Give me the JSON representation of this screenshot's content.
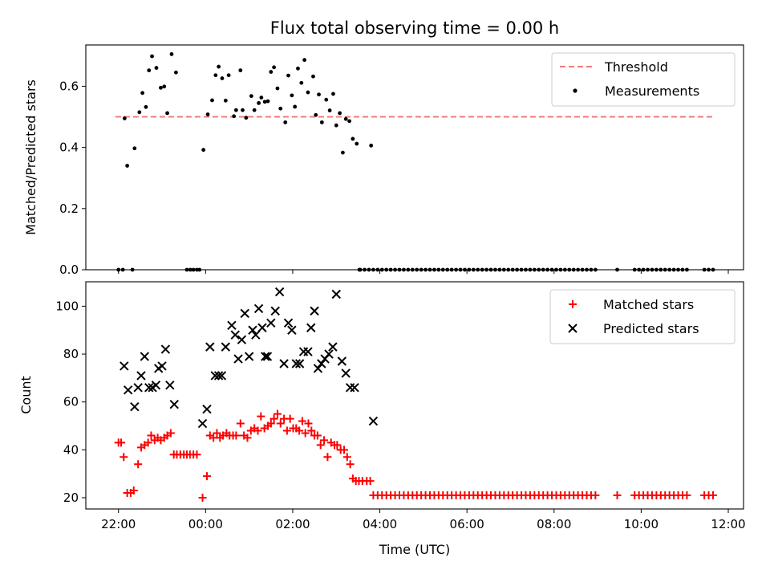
{
  "colors": {
    "threshold": "#f27a7a",
    "measurement": "#000000",
    "matched": "#ff0000",
    "predicted": "#000000"
  },
  "chart_data": [
    {
      "type": "scatter",
      "title": "Flux total observing time = 0.00 h",
      "xlabel": "",
      "ylabel": "Matched/Predicted stars",
      "xlim": [
        21.25,
        36.35
      ],
      "ylim": [
        0.0,
        0.735
      ],
      "yticks": [
        {
          "v": 0.0,
          "label": "0.0"
        },
        {
          "v": 0.2,
          "label": "0.2"
        },
        {
          "v": 0.4,
          "label": "0.4"
        },
        {
          "v": 0.6,
          "label": "0.6"
        }
      ],
      "legend": {
        "placement": "top-right",
        "items": [
          "Threshold",
          "Measurements"
        ]
      },
      "threshold": {
        "name": "Threshold",
        "y": 0.5,
        "x": [
          21.93,
          35.68
        ],
        "style": "dashed"
      },
      "series": [
        {
          "name": "Measurements",
          "marker": "dot",
          "points": [
            [
              22.0,
              0.0
            ],
            [
              22.1,
              0.0
            ],
            [
              22.14,
              0.495
            ],
            [
              22.2,
              0.34
            ],
            [
              22.32,
              0.0
            ],
            [
              22.37,
              0.397
            ],
            [
              22.48,
              0.515
            ],
            [
              22.55,
              0.578
            ],
            [
              22.63,
              0.532
            ],
            [
              22.7,
              0.652
            ],
            [
              22.77,
              0.698
            ],
            [
              22.87,
              0.66
            ],
            [
              22.97,
              0.595
            ],
            [
              23.05,
              0.599
            ],
            [
              23.12,
              0.512
            ],
            [
              23.22,
              0.705
            ],
            [
              23.32,
              0.645
            ],
            [
              23.57,
              0.0
            ],
            [
              23.65,
              0.0
            ],
            [
              23.72,
              0.0
            ],
            [
              23.8,
              0.0
            ],
            [
              23.86,
              0.0
            ],
            [
              23.95,
              0.392
            ],
            [
              24.05,
              0.508
            ],
            [
              24.15,
              0.554
            ],
            [
              24.23,
              0.636
            ],
            [
              24.3,
              0.664
            ],
            [
              24.38,
              0.626
            ],
            [
              24.46,
              0.553
            ],
            [
              24.53,
              0.636
            ],
            [
              24.65,
              0.502
            ],
            [
              24.7,
              0.522
            ],
            [
              24.8,
              0.652
            ],
            [
              24.85,
              0.522
            ],
            [
              24.93,
              0.497
            ],
            [
              25.05,
              0.568
            ],
            [
              25.12,
              0.522
            ],
            [
              25.22,
              0.545
            ],
            [
              25.28,
              0.563
            ],
            [
              25.36,
              0.549
            ],
            [
              25.43,
              0.551
            ],
            [
              25.5,
              0.647
            ],
            [
              25.57,
              0.662
            ],
            [
              25.65,
              0.593
            ],
            [
              25.72,
              0.527
            ],
            [
              25.83,
              0.482
            ],
            [
              25.9,
              0.635
            ],
            [
              25.98,
              0.57
            ],
            [
              26.05,
              0.533
            ],
            [
              26.12,
              0.658
            ],
            [
              26.2,
              0.611
            ],
            [
              26.27,
              0.686
            ],
            [
              26.35,
              0.58
            ],
            [
              26.47,
              0.632
            ],
            [
              26.53,
              0.506
            ],
            [
              26.6,
              0.573
            ],
            [
              26.67,
              0.482
            ],
            [
              26.77,
              0.556
            ],
            [
              26.85,
              0.521
            ],
            [
              26.93,
              0.575
            ],
            [
              27.0,
              0.472
            ],
            [
              27.08,
              0.512
            ],
            [
              27.15,
              0.383
            ],
            [
              27.22,
              0.493
            ],
            [
              27.3,
              0.486
            ],
            [
              27.38,
              0.428
            ],
            [
              27.47,
              0.412
            ],
            [
              27.53,
              0.0
            ],
            [
              27.8,
              0.406
            ]
          ],
          "zero_fill": {
            "from": 27.55,
            "to": 35.7,
            "step": 0.1,
            "y": 0.0,
            "gaps": [
              [
                33.0,
                33.4
              ],
              [
                33.55,
                33.85
              ],
              [
                35.15,
                35.45
              ]
            ]
          }
        }
      ]
    },
    {
      "type": "scatter",
      "title": "",
      "xlabel": "Time (UTC)",
      "ylabel": "Count",
      "xlim": [
        21.25,
        36.35
      ],
      "ylim": [
        15.3,
        110.2
      ],
      "yticks": [
        {
          "v": 20,
          "label": "20"
        },
        {
          "v": 40,
          "label": "40"
        },
        {
          "v": 60,
          "label": "60"
        },
        {
          "v": 80,
          "label": "80"
        },
        {
          "v": 100,
          "label": "100"
        }
      ],
      "xticks": [
        {
          "v": 22,
          "label": "22:00"
        },
        {
          "v": 24,
          "label": "00:00"
        },
        {
          "v": 26,
          "label": "02:00"
        },
        {
          "v": 28,
          "label": "04:00"
        },
        {
          "v": 30,
          "label": "06:00"
        },
        {
          "v": 32,
          "label": "08:00"
        },
        {
          "v": 34,
          "label": "10:00"
        },
        {
          "v": 36,
          "label": "12:00"
        }
      ],
      "legend": {
        "placement": "top-right",
        "items": [
          "Matched stars",
          "Predicted stars"
        ]
      },
      "series": [
        {
          "name": "Matched stars",
          "marker": "plus",
          "points": [
            [
              22.0,
              43
            ],
            [
              22.06,
              43
            ],
            [
              22.12,
              37
            ],
            [
              22.2,
              22
            ],
            [
              22.28,
              22
            ],
            [
              22.35,
              23
            ],
            [
              22.45,
              34
            ],
            [
              22.52,
              41
            ],
            [
              22.6,
              42
            ],
            [
              22.68,
              43
            ],
            [
              22.75,
              46
            ],
            [
              22.83,
              44
            ],
            [
              22.9,
              45
            ],
            [
              22.97,
              44
            ],
            [
              23.05,
              45
            ],
            [
              23.12,
              46
            ],
            [
              23.2,
              47
            ],
            [
              23.27,
              38
            ],
            [
              23.34,
              38
            ],
            [
              23.42,
              38
            ],
            [
              23.5,
              38
            ],
            [
              23.57,
              38
            ],
            [
              23.64,
              38
            ],
            [
              23.72,
              38
            ],
            [
              23.8,
              38
            ],
            [
              23.93,
              20
            ],
            [
              24.03,
              29
            ],
            [
              24.1,
              46
            ],
            [
              24.18,
              45
            ],
            [
              24.26,
              47
            ],
            [
              24.33,
              45
            ],
            [
              24.4,
              46
            ],
            [
              24.48,
              47
            ],
            [
              24.55,
              46
            ],
            [
              24.63,
              46
            ],
            [
              24.7,
              46
            ],
            [
              24.8,
              51
            ],
            [
              24.88,
              46
            ],
            [
              24.96,
              45
            ],
            [
              25.04,
              48
            ],
            [
              25.12,
              49
            ],
            [
              25.2,
              48
            ],
            [
              25.27,
              54
            ],
            [
              25.35,
              49
            ],
            [
              25.43,
              50
            ],
            [
              25.5,
              51
            ],
            [
              25.57,
              53
            ],
            [
              25.65,
              55
            ],
            [
              25.72,
              51
            ],
            [
              25.8,
              53
            ],
            [
              25.87,
              48
            ],
            [
              25.94,
              53
            ],
            [
              26.01,
              49
            ],
            [
              26.08,
              49
            ],
            [
              26.15,
              48
            ],
            [
              26.22,
              52
            ],
            [
              26.29,
              47
            ],
            [
              26.36,
              51
            ],
            [
              26.43,
              48
            ],
            [
              26.5,
              46
            ],
            [
              26.57,
              46
            ],
            [
              26.64,
              42
            ],
            [
              26.72,
              44
            ],
            [
              26.8,
              37
            ],
            [
              26.88,
              43
            ],
            [
              26.96,
              42
            ],
            [
              27.02,
              42
            ],
            [
              27.1,
              40
            ],
            [
              27.18,
              40
            ],
            [
              27.25,
              37
            ],
            [
              27.32,
              34
            ],
            [
              27.38,
              28
            ],
            [
              27.45,
              27
            ],
            [
              27.52,
              27
            ],
            [
              27.6,
              27
            ],
            [
              27.7,
              27
            ],
            [
              27.78,
              27
            ]
          ],
          "fill": {
            "from": 27.85,
            "to": 35.7,
            "step": 0.1,
            "y": 21,
            "gaps": [
              [
                33.0,
                33.4
              ],
              [
                33.55,
                33.85
              ],
              [
                35.15,
                35.45
              ]
            ]
          }
        },
        {
          "name": "Predicted stars",
          "marker": "x",
          "points": [
            [
              22.13,
              75
            ],
            [
              22.22,
              65
            ],
            [
              22.37,
              58
            ],
            [
              22.45,
              66
            ],
            [
              22.52,
              71
            ],
            [
              22.6,
              79
            ],
            [
              22.7,
              66
            ],
            [
              22.78,
              66
            ],
            [
              22.86,
              67
            ],
            [
              22.92,
              74
            ],
            [
              23.0,
              75
            ],
            [
              23.08,
              82
            ],
            [
              23.18,
              67
            ],
            [
              23.28,
              59
            ],
            [
              23.93,
              51
            ],
            [
              24.03,
              57
            ],
            [
              24.1,
              83
            ],
            [
              24.22,
              71
            ],
            [
              24.3,
              71
            ],
            [
              24.37,
              71
            ],
            [
              24.46,
              83
            ],
            [
              24.6,
              92
            ],
            [
              24.68,
              88
            ],
            [
              24.75,
              78
            ],
            [
              24.83,
              86
            ],
            [
              24.9,
              97
            ],
            [
              25.0,
              79
            ],
            [
              25.08,
              90
            ],
            [
              25.15,
              88
            ],
            [
              25.22,
              99
            ],
            [
              25.3,
              91
            ],
            [
              25.37,
              79
            ],
            [
              25.42,
              79
            ],
            [
              25.5,
              93
            ],
            [
              25.6,
              98
            ],
            [
              25.7,
              106
            ],
            [
              25.8,
              76
            ],
            [
              25.9,
              93
            ],
            [
              25.98,
              90
            ],
            [
              26.08,
              76
            ],
            [
              26.16,
              76
            ],
            [
              26.25,
              81
            ],
            [
              26.35,
              81
            ],
            [
              26.42,
              91
            ],
            [
              26.5,
              98
            ],
            [
              26.58,
              74
            ],
            [
              26.66,
              76
            ],
            [
              26.74,
              78
            ],
            [
              26.83,
              80
            ],
            [
              26.92,
              83
            ],
            [
              27.0,
              105
            ],
            [
              27.13,
              77
            ],
            [
              27.22,
              72
            ],
            [
              27.32,
              66
            ],
            [
              27.42,
              66
            ],
            [
              27.85,
              52
            ]
          ]
        }
      ]
    }
  ]
}
